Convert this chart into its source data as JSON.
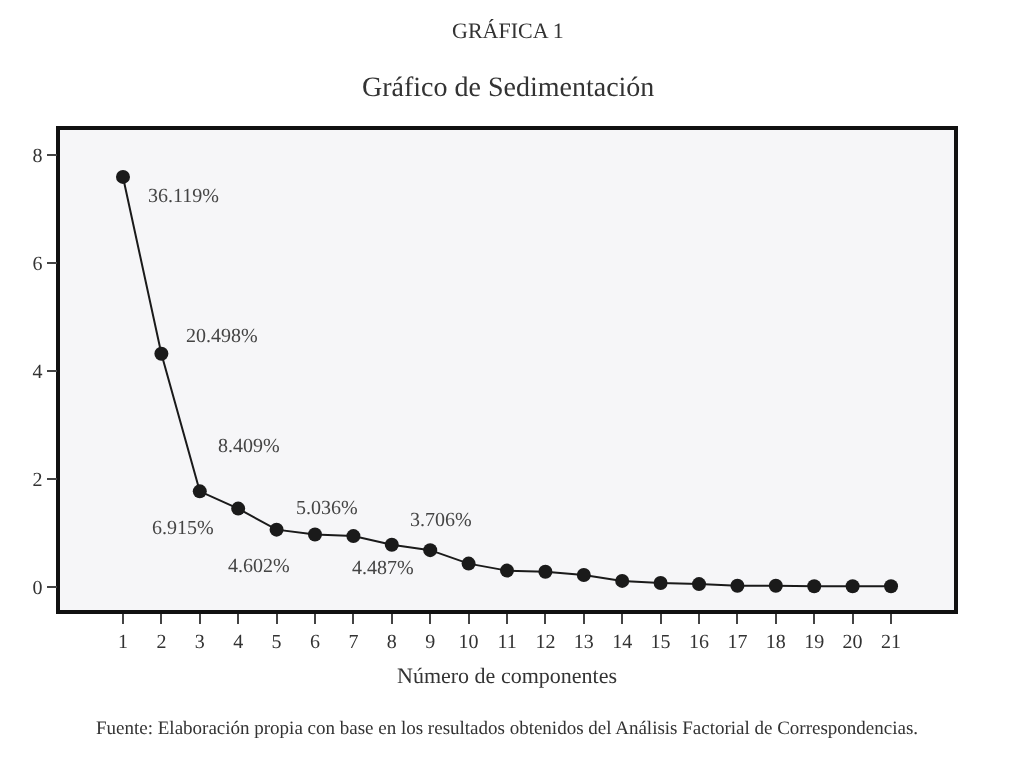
{
  "chart_data": {
    "type": "line",
    "title": "GRÁFICA 1",
    "subtitle": "Gráfico de Sedimentación",
    "xlabel": "Número de componentes",
    "x": [
      1,
      2,
      3,
      4,
      5,
      6,
      7,
      8,
      9,
      10,
      11,
      12,
      13,
      14,
      15,
      16,
      17,
      18,
      19,
      20,
      21
    ],
    "series": [
      {
        "color": "#1a1a1a",
        "values": [
          7.6,
          4.32,
          1.77,
          1.45,
          1.06,
          0.97,
          0.94,
          0.78,
          0.68,
          0.43,
          0.3,
          0.28,
          0.22,
          0.11,
          0.07,
          0.05,
          0.02,
          0.02,
          0.01,
          0.01,
          0.01
        ]
      }
    ],
    "xlim": [
      -0.64,
      22.64
    ],
    "xticks": [
      1,
      2,
      3,
      4,
      5,
      6,
      7,
      8,
      9,
      10,
      11,
      12,
      13,
      14,
      15,
      16,
      17,
      18,
      19,
      20,
      21
    ],
    "ylim": [
      -0.43,
      8.47
    ],
    "yticks": [
      0,
      2,
      4,
      6,
      8
    ],
    "marker": "circle",
    "line_style": "solid",
    "annotations": [
      {
        "text": "36.119%",
        "x": 1,
        "y": 7.6
      },
      {
        "text": "20.498%",
        "x": 2,
        "y": 4.32
      },
      {
        "text": "8.409%",
        "x": 3,
        "y": 1.77
      },
      {
        "text": "6.915%",
        "x": 4,
        "y": 1.45
      },
      {
        "text": "5.036%",
        "x": 5,
        "y": 1.06
      },
      {
        "text": "4.602%",
        "x": 6,
        "y": 0.97
      },
      {
        "text": "4.487%",
        "x": 7,
        "y": 0.94
      },
      {
        "text": "3.706%",
        "x": 8,
        "y": 0.78
      },
      "Fuente: Elaboración propia con base en los resultados obtenidos del Análisis Factorial de Correspondencias."
    ]
  }
}
